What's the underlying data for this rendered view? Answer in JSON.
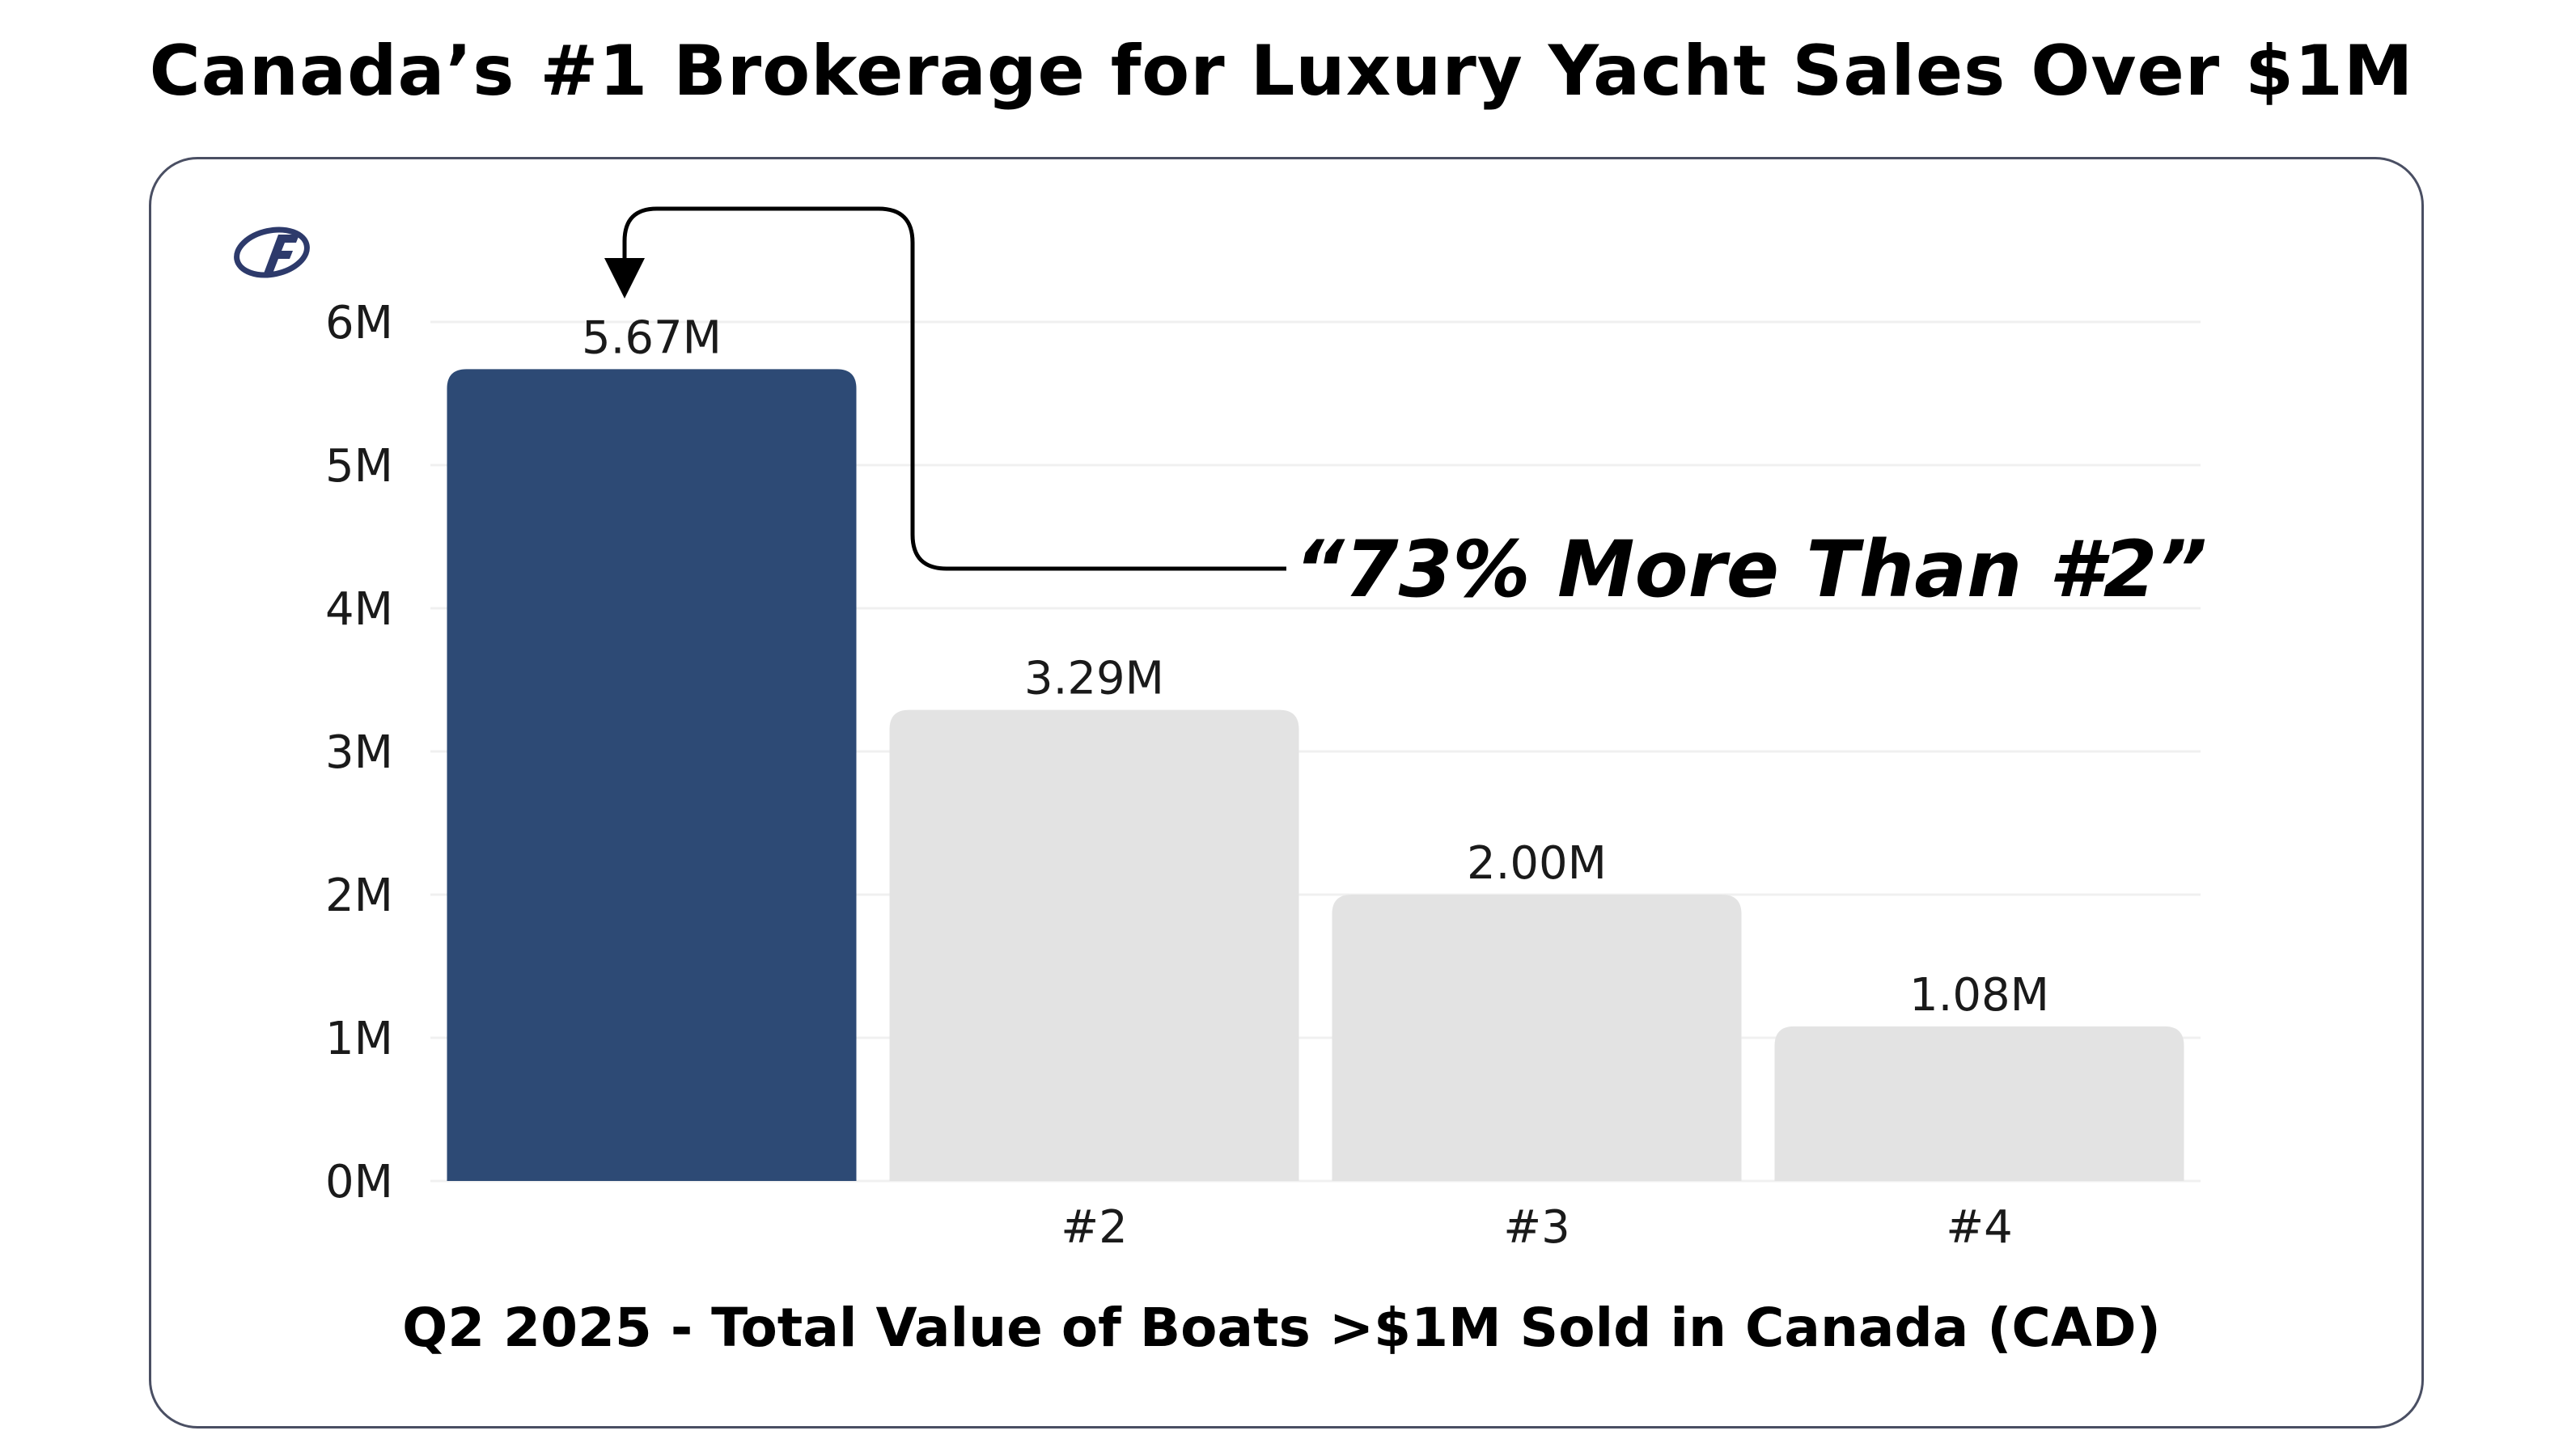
{
  "page": {
    "title": "Canada’s #1 Brokerage for Luxury Yacht Sales Over $1M"
  },
  "logo": {
    "icon": "brokerage-logo-icon",
    "color": "#2d3a6b"
  },
  "annotation": {
    "text": "“73% More Than #2”"
  },
  "chart_data": {
    "type": "bar",
    "categories": [
      "",
      "#2",
      "#3",
      "#4"
    ],
    "values": [
      5.67,
      3.29,
      2.0,
      1.08
    ],
    "data_labels": [
      "5.67M",
      "3.29M",
      "2.00M",
      "1.08M"
    ],
    "title": "",
    "xlabel": "Q2 2025 - Total Value of Boats >$1M Sold in Canada (CAD)",
    "ylabel": "",
    "ylim": [
      0,
      6
    ],
    "yticks": [
      0,
      1,
      2,
      3,
      4,
      5,
      6
    ],
    "ytick_labels": [
      "0M",
      "1M",
      "2M",
      "3M",
      "4M",
      "5M",
      "6M"
    ],
    "grid": true,
    "bar_colors": [
      "#2d4a75",
      "#e3e3e3",
      "#e3e3e3",
      "#e3e3e3"
    ],
    "grid_color": "#f0f0f0"
  }
}
